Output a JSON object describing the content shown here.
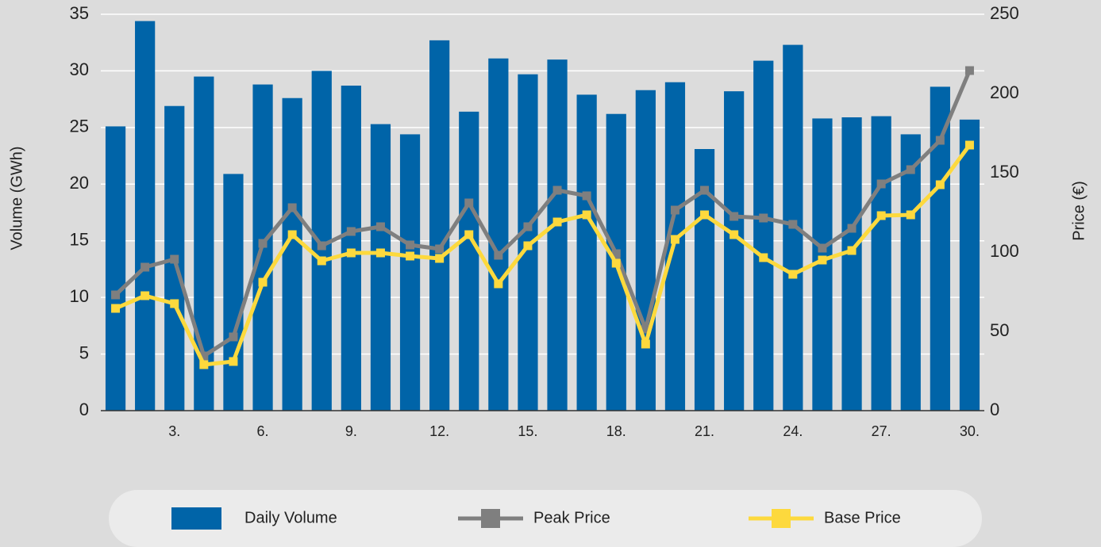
{
  "chart_data": {
    "type": "combo",
    "ylabel": "Volume (GWh)",
    "y2label": "Price (€)",
    "categories": [
      null,
      null,
      "3.",
      null,
      null,
      "6.",
      null,
      null,
      "9.",
      null,
      null,
      "12.",
      null,
      null,
      "15.",
      null,
      null,
      "18.",
      null,
      null,
      "21.",
      null,
      null,
      "24.",
      null,
      null,
      "27.",
      null,
      null,
      "30."
    ],
    "series": [
      {
        "name": "Daily Volume",
        "type": "bar",
        "color": "#0064a8",
        "axis": "y",
        "values": [
          25.1,
          34.4,
          26.9,
          29.5,
          20.9,
          28.8,
          27.6,
          30.0,
          28.7,
          25.3,
          24.4,
          32.7,
          26.4,
          31.1,
          29.7,
          31.0,
          27.9,
          26.2,
          28.3,
          29.0,
          23.1,
          28.2,
          30.9,
          32.3,
          25.8,
          25.9,
          26.0,
          24.4,
          28.6,
          25.7
        ]
      },
      {
        "name": "Peak Price",
        "type": "line",
        "color": "#7f7f7f",
        "axis": "y2",
        "values": [
          73,
          90.5,
          95.5,
          34.5,
          46.5,
          105.5,
          128,
          104,
          113,
          116,
          104.5,
          102,
          131,
          98,
          116,
          139,
          135.5,
          99,
          51.5,
          126.5,
          139,
          122.5,
          121.5,
          117.5,
          102.5,
          115,
          143,
          152,
          170.5,
          214.5
        ]
      },
      {
        "name": "Base Price",
        "type": "line",
        "color": "#fdd93d",
        "axis": "y2",
        "values": [
          64.5,
          72.5,
          67.5,
          29,
          31,
          81,
          111,
          94.5,
          99.5,
          99.5,
          97.5,
          96,
          111,
          80,
          104,
          119,
          123.5,
          93,
          42,
          108,
          123.5,
          111,
          96.5,
          86,
          95,
          101,
          123,
          123.5,
          142.5,
          167.5
        ]
      }
    ],
    "ylim": [
      0,
      35
    ],
    "yticks": [
      0,
      5,
      10,
      15,
      20,
      25,
      30,
      35
    ],
    "y2lim": [
      0,
      250
    ],
    "y2ticks": [
      0,
      50,
      100,
      150,
      200,
      250
    ],
    "grid": true,
    "legend": "bottom"
  }
}
